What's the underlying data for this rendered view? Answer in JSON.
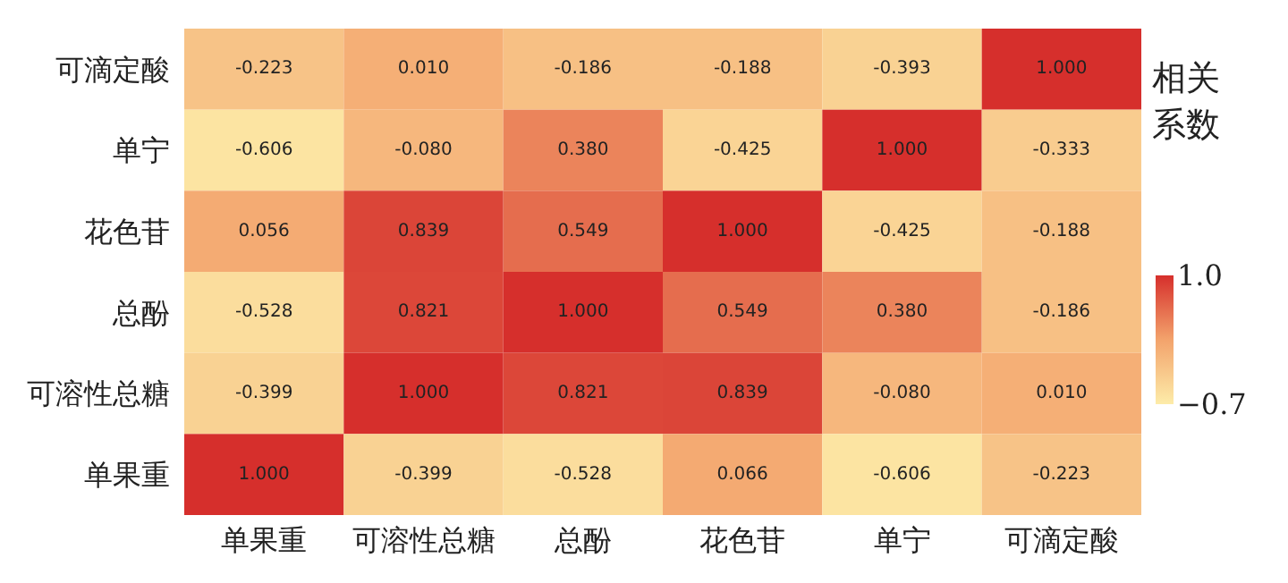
{
  "chart_data": {
    "type": "heatmap",
    "categories": [
      "单果重",
      "可溶性总糖",
      "总酚",
      "花色苷",
      "单宁",
      "可滴定酸"
    ],
    "y_categories": [
      "可滴定酸",
      "单宁",
      "花色苷",
      "总酚",
      "可溶性总糖",
      "单果重"
    ],
    "cells": [
      [
        -0.223,
        0.01,
        -0.186,
        -0.188,
        -0.393,
        1.0
      ],
      [
        -0.606,
        -0.08,
        0.38,
        -0.425,
        1.0,
        -0.333
      ],
      [
        0.056,
        0.839,
        0.549,
        1.0,
        -0.425,
        -0.188
      ],
      [
        -0.528,
        0.821,
        1.0,
        0.549,
        0.38,
        -0.186
      ],
      [
        -0.399,
        1.0,
        0.821,
        0.839,
        -0.08,
        0.01
      ],
      [
        1.0,
        -0.399,
        -0.528,
        0.066,
        -0.606,
        -0.223
      ]
    ],
    "cell_labels": [
      [
        "-0.223",
        "0.010",
        "-0.186",
        "-0.188",
        "-0.393",
        "1.000"
      ],
      [
        "-0.606",
        "-0.080",
        "0.380",
        "-0.425",
        "1.000",
        "-0.333"
      ],
      [
        "0.056",
        "0.839",
        "0.549",
        "1.000",
        "-0.425",
        "-0.188"
      ],
      [
        "-0.528",
        "0.821",
        "1.000",
        "0.549",
        "0.380",
        "-0.186"
      ],
      [
        "-0.399",
        "1.000",
        "0.821",
        "0.839",
        "-0.080",
        "0.010"
      ],
      [
        "1.000",
        "-0.399",
        "-0.528",
        "0.066",
        "-0.606",
        "-0.223"
      ]
    ],
    "clabel": "相关系数",
    "clim": [
      -0.7,
      1.0
    ],
    "cticks": [
      {
        "value": 1.0,
        "label": "1.0"
      },
      {
        "value": -0.7,
        "label": "−0.7"
      }
    ]
  }
}
